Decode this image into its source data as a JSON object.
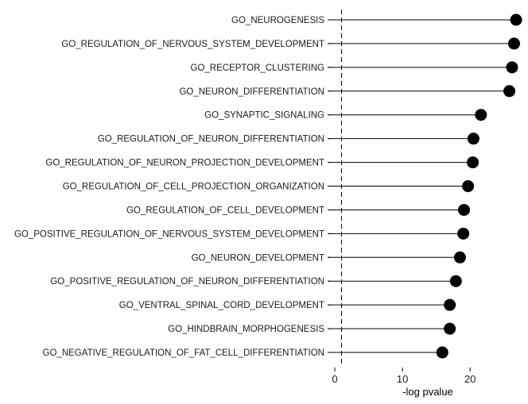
{
  "chart_data": {
    "type": "lollipop",
    "categories": [
      "GO_NEUROGENESIS",
      "GO_REGULATION_OF_NERVOUS_SYSTEM_DEVELOPMENT",
      "GO_RECEPTOR_CLUSTERING",
      "GO_NEURON_DIFFERENTIATION",
      "GO_SYNAPTIC_SIGNALING",
      "GO_REGULATION_OF_NEURON_DIFFERENTIATION",
      "GO_REGULATION_OF_NEURON_PROJECTION_DEVELOPMENT",
      "GO_REGULATION_OF_CELL_PROJECTION_ORGANIZATION",
      "GO_REGULATION_OF_CELL_DEVELOPMENT",
      "GO_POSITIVE_REGULATION_OF_NERVOUS_SYSTEM_DEVELOPMENT",
      "GO_NEURON_DEVELOPMENT",
      "GO_POSITIVE_REGULATION_OF_NEURON_DIFFERENTIATION",
      "GO_VENTRAL_SPINAL_CORD_DEVELOPMENT",
      "GO_HINDBRAIN_MORPHOGENESIS",
      "GO_NEGATIVE_REGULATION_OF_FAT_CELL_DIFFERENTIATION"
    ],
    "values": [
      26.8,
      26.5,
      26.2,
      25.8,
      21.6,
      20.5,
      20.4,
      19.7,
      19.1,
      19.0,
      18.5,
      17.9,
      17.0,
      17.0,
      15.9
    ],
    "xlabel": "-log pvalue",
    "ylabel": "",
    "xlim": [
      0,
      27.5
    ],
    "xticks": [
      0,
      10,
      20
    ],
    "reference_line": 1.0,
    "reference_line_style": "dashed",
    "grid": false,
    "colors": {
      "line": "#000000",
      "point": "#000000",
      "text": "#1a1a1a"
    }
  }
}
